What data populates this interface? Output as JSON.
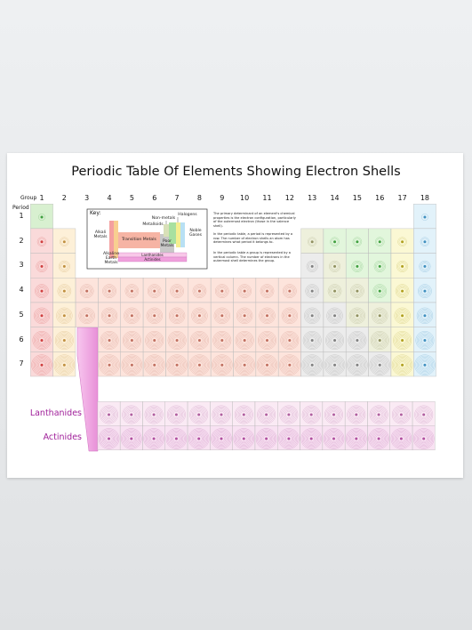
{
  "title": "Periodic Table Of Elements Showing Electron Shells",
  "group_label": "Group",
  "period_label": "Period",
  "groups": [
    "1",
    "2",
    "3",
    "4",
    "5",
    "6",
    "7",
    "8",
    "9",
    "10",
    "11",
    "12",
    "13",
    "14",
    "15",
    "16",
    "17",
    "18"
  ],
  "periods": [
    "1",
    "2",
    "3",
    "4",
    "5",
    "6",
    "7"
  ],
  "key": {
    "label": "Key:",
    "alkali": "Alkali Metals",
    "alkaline_earth": "Alkaline Earth Metals",
    "transition": "Transition Metals",
    "poor": "Poor Metals",
    "metalloids": "Metalloids",
    "nonmetals": "Non-metals",
    "halogens": "Halogens",
    "noble": "Noble Gases",
    "lanthanides": "Lanthanides",
    "actinides": "Actinides"
  },
  "notes": [
    "The primary determinant of an element's chemical properties is the electron configuration, particularly of the outermost electron (those in the valence shell).",
    "In the periodic table, a period is represented by a row. The number of electron shells an atom has determines what period it belongs to.",
    "In the periodic table a group is represented by a vertical column. The number of electrons in the outermost shell determines the group."
  ],
  "rows": {
    "lanthanides": "Lanthanides",
    "actinides": "Actinides"
  }
}
